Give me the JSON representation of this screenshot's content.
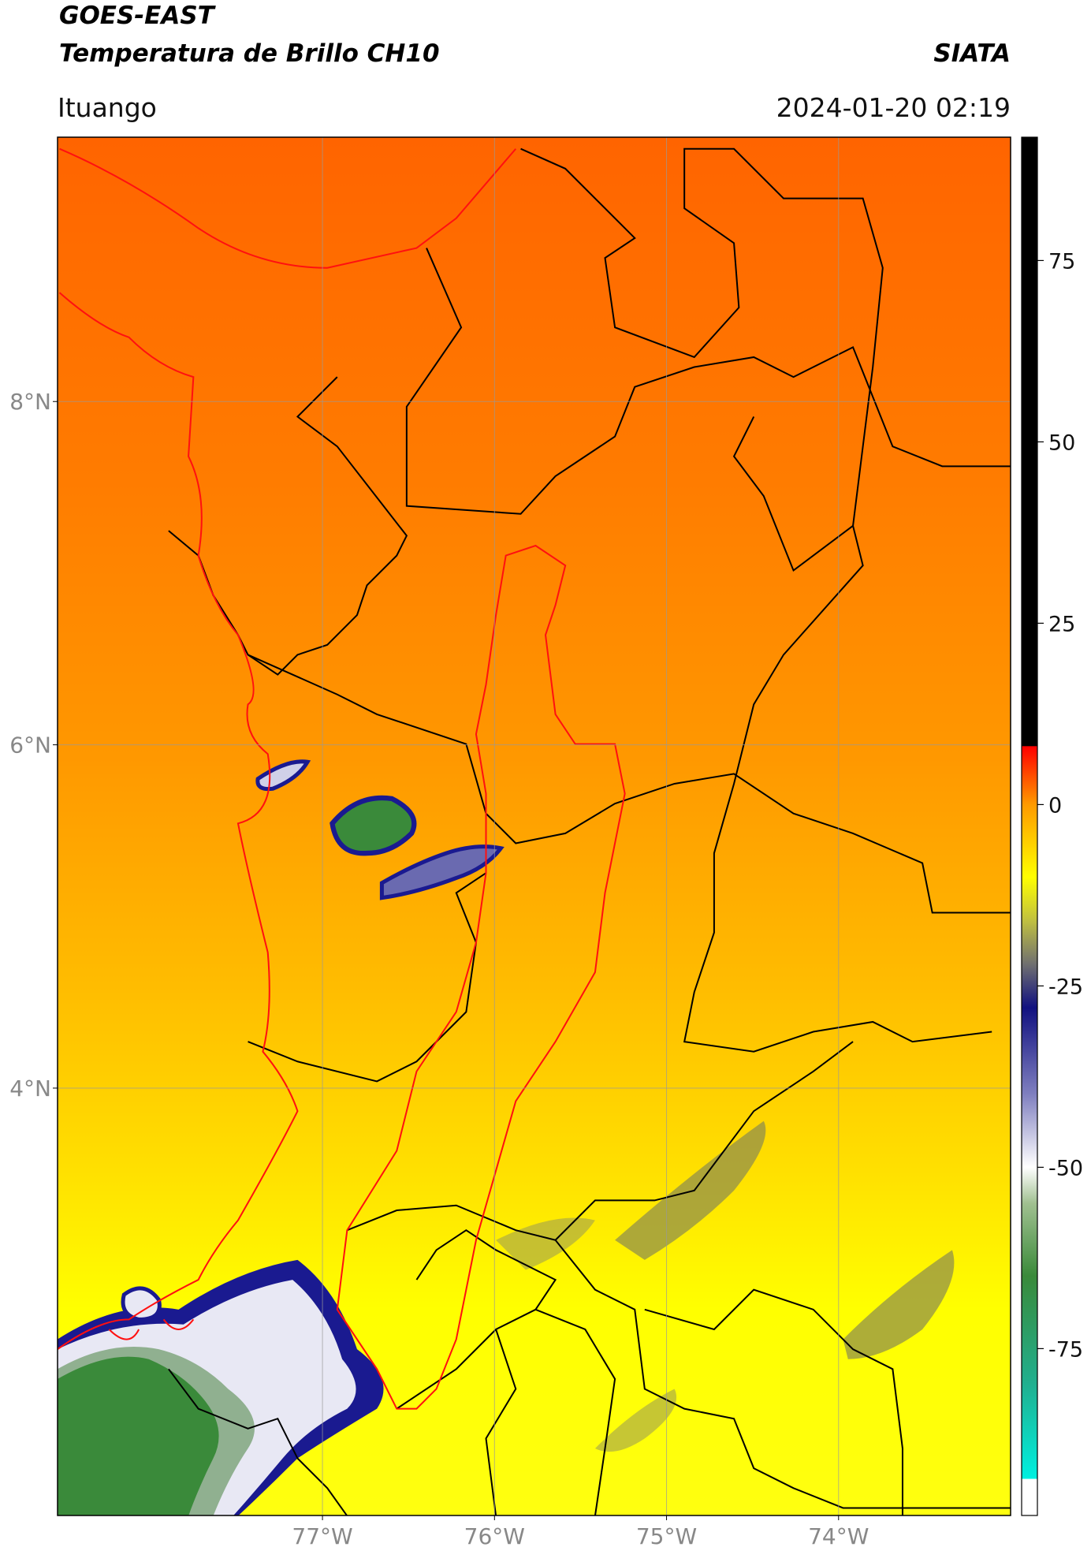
{
  "chart_data": {
    "type": "map",
    "title": "GOES-EAST",
    "subtitle": "Temperatura de Brillo CH10",
    "source": "SIATA",
    "location": "Ituango",
    "datetime": "2024-01-20 02:19",
    "xlim": [
      -78.54,
      -73.0
    ],
    "ylim": [
      1.51,
      9.54
    ],
    "xticks": [
      {
        "value": -77,
        "label": "77°W"
      },
      {
        "value": -76,
        "label": "76°W"
      },
      {
        "value": -75,
        "label": "75°W"
      },
      {
        "value": -74,
        "label": "74°W"
      }
    ],
    "yticks": [
      {
        "value": 8,
        "label": "8°N"
      },
      {
        "value": 6,
        "label": "6°N"
      },
      {
        "value": 4,
        "label": "4°N"
      }
    ],
    "grid": true,
    "colorbar": {
      "lim": [
        -98,
        92
      ],
      "ticks": [
        75,
        50,
        25,
        0,
        -25,
        -50,
        -75
      ],
      "stops": [
        [
          -98,
          "#ffffff"
        ],
        [
          -93,
          "#ffffff"
        ],
        [
          -92.9,
          "#00f0e0"
        ],
        [
          -80,
          "#20b090"
        ],
        [
          -65,
          "#3a8a3a"
        ],
        [
          -55,
          "#a0c090"
        ],
        [
          -50,
          "#ffffff"
        ],
        [
          -40,
          "#8080c0"
        ],
        [
          -28,
          "#101080"
        ],
        [
          -22,
          "#707070"
        ],
        [
          -16,
          "#c0c040"
        ],
        [
          -10,
          "#ffff00"
        ],
        [
          0,
          "#ff9a00"
        ],
        [
          8,
          "#ff0000"
        ],
        [
          8.1,
          "#000000"
        ],
        [
          92,
          "#000000"
        ]
      ]
    }
  }
}
